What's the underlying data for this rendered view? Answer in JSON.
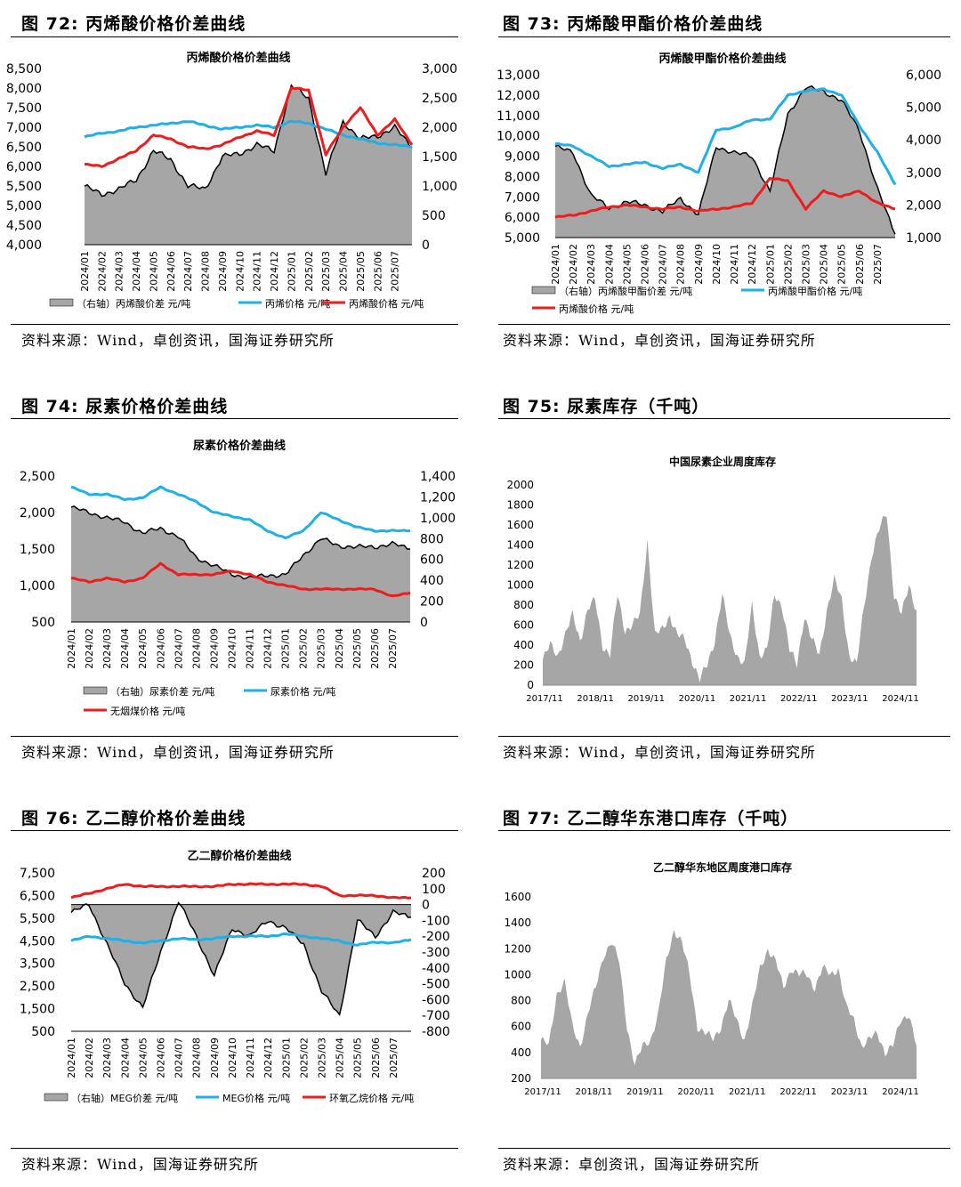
{
  "panels": [
    {
      "fig": "图 72:  丙烯酸价格价差曲线",
      "source": "资料来源：Wind，卓创资讯，国海证券研究所"
    },
    {
      "fig": "图 73:  丙烯酸甲酯价格价差曲线",
      "source": "资料来源：Wind，卓创资讯，国海证券研究所"
    },
    {
      "fig": "图 74:  尿素价格价差曲线",
      "source": "资料来源：Wind，卓创资讯，国海证券研究所"
    },
    {
      "fig": "图 75:  尿素库存（千吨）",
      "source": "资料来源：Wind，卓创资讯，国海证券研究所"
    },
    {
      "fig": "图 76:  乙二醇价格价差曲线",
      "source": "资料来源：Wind，国海证券研究所"
    },
    {
      "fig": "图 77:  乙二醇华东港口库存（千吨）",
      "source": "资料来源：卓创资讯，国海证券研究所"
    }
  ],
  "colors": {
    "spread": "#a6a6a6",
    "blue": "#1fb0e6",
    "red": "#ee1c1c"
  },
  "chart_data": [
    {
      "id": "c72",
      "type": "line",
      "title": "丙烯酸价格价差曲线",
      "x": [
        "2024/01",
        "2024/02",
        "2024/03",
        "2024/04",
        "2024/05",
        "2024/06",
        "2024/07",
        "2024/08",
        "2024/09",
        "2024/10",
        "2024/11",
        "2024/12",
        "2025/01",
        "2025/02",
        "2025/03",
        "2025/04",
        "2025/05",
        "2025/06",
        "2025/07",
        "2025/07e"
      ],
      "xticks": [
        "2024/01",
        "2024/02",
        "2024/03",
        "2024/04",
        "2024/05",
        "2024/06",
        "2024/07",
        "2024/08",
        "2024/09",
        "2024/10",
        "2024/11",
        "2024/12",
        "2025/01",
        "2025/02",
        "2025/03",
        "2025/04",
        "2025/05",
        "2025/06",
        "2025/07"
      ],
      "ylim": [
        4000,
        8500
      ],
      "yticks": [
        "8,500",
        "8,000",
        "7,500",
        "7,000",
        "6,500",
        "6,000",
        "5,500",
        "5,000",
        "4,500",
        "4,000"
      ],
      "y2lim": [
        0,
        3000
      ],
      "y2ticks": [
        "3,000",
        "2,500",
        "2,000",
        "1,500",
        "1,000",
        "500",
        "0"
      ],
      "series": [
        {
          "name": "（右轴）丙烯酸价差  元/吨",
          "axis": "y2",
          "kind": "area",
          "color": "spread",
          "values": [
            1000,
            850,
            950,
            1100,
            1600,
            1450,
            1000,
            950,
            1500,
            1550,
            1700,
            1600,
            2700,
            2500,
            1200,
            2100,
            1800,
            1850,
            2000,
            1650
          ]
        },
        {
          "name": "丙烯价格  元/吨",
          "axis": "y",
          "kind": "line",
          "color": "blue",
          "values": [
            6750,
            6850,
            6900,
            7000,
            7050,
            7100,
            7150,
            7050,
            6950,
            7000,
            7050,
            7000,
            7150,
            7100,
            6950,
            6800,
            6700,
            6600,
            6550,
            6500
          ]
        },
        {
          "name": "丙烯酸价格  元/吨",
          "axis": "y",
          "kind": "line",
          "color": "red",
          "values": [
            6050,
            6000,
            6200,
            6400,
            6800,
            6700,
            6500,
            6450,
            6550,
            6750,
            6900,
            6800,
            8000,
            7950,
            6300,
            7000,
            7500,
            6800,
            7200,
            6550
          ]
        }
      ],
      "legend": [
        {
          "text": "（右轴）丙烯酸价差  元/吨",
          "color": "spread",
          "kind": "box"
        },
        {
          "text": "丙烯价格  元/吨",
          "color": "blue",
          "kind": "line"
        },
        {
          "text": "丙烯酸价格  元/吨",
          "color": "red",
          "kind": "line"
        }
      ]
    },
    {
      "id": "c73",
      "type": "line",
      "title": "丙烯酸甲酯价格价差曲线",
      "x": [
        "2024/01",
        "2024/02",
        "2024/03",
        "2024/04",
        "2024/05",
        "2024/06",
        "2024/07",
        "2024/08",
        "2024/09",
        "2024/10",
        "2024/11",
        "2024/12",
        "2025/01",
        "2025/02",
        "2025/03",
        "2025/04",
        "2025/05",
        "2025/06",
        "2025/07",
        "2025/07e"
      ],
      "xticks": [
        "2024/01",
        "2024/02",
        "2024/03",
        "2024/04",
        "2024/05",
        "2024/06",
        "2024/07",
        "2024/08",
        "2024/09",
        "2024/10",
        "2024/11",
        "2024/12",
        "2025/01",
        "2025/02",
        "2025/03",
        "2025/04",
        "2025/05",
        "2025/06",
        "2025/07"
      ],
      "ylim": [
        5000,
        13000
      ],
      "yticks": [
        "13,000",
        "12,000",
        "11,000",
        "10,000",
        "9,000",
        "8,000",
        "7,000",
        "6,000",
        "5,000"
      ],
      "y2lim": [
        1000,
        6000
      ],
      "y2ticks": [
        "6,000",
        "5,000",
        "4,000",
        "3,000",
        "2,000",
        "1,000"
      ],
      "series": [
        {
          "name": "（右轴）丙烯酸甲酯价差  元/吨",
          "axis": "y2",
          "kind": "area",
          "color": "spread",
          "values": [
            3800,
            3600,
            2300,
            1900,
            2100,
            2000,
            1800,
            2200,
            1700,
            3800,
            3600,
            3500,
            2400,
            4800,
            5600,
            5500,
            5200,
            4300,
            2500,
            1100
          ]
        },
        {
          "name": "丙烯酸甲酯价格  元/吨",
          "axis": "y",
          "kind": "line",
          "color": "blue",
          "values": [
            9600,
            9500,
            9000,
            8500,
            8600,
            8700,
            8400,
            8600,
            8200,
            10300,
            10400,
            10800,
            10800,
            12000,
            12200,
            12300,
            12000,
            10500,
            9200,
            7600
          ]
        },
        {
          "name": "丙烯酸价格  元/吨",
          "axis": "y",
          "kind": "line",
          "color": "red",
          "values": [
            6000,
            6100,
            6300,
            6500,
            6600,
            6500,
            6400,
            6500,
            6300,
            6400,
            6500,
            6700,
            7900,
            7800,
            6400,
            7300,
            7000,
            7300,
            6700,
            6400
          ]
        }
      ],
      "legend": [
        {
          "text": "（右轴）丙烯酸甲酯价差  元/吨",
          "color": "spread",
          "kind": "box"
        },
        {
          "text": "丙烯酸甲酯价格  元/吨",
          "color": "blue",
          "kind": "line"
        },
        {
          "text": "丙烯酸价格  元/吨",
          "color": "red",
          "kind": "line"
        }
      ]
    },
    {
      "id": "c74",
      "type": "line",
      "title": "尿素价格价差曲线",
      "x": [
        "2024/01",
        "2024/02",
        "2024/03",
        "2024/04",
        "2024/05",
        "2024/06",
        "2024/07",
        "2024/08",
        "2024/09",
        "2024/10",
        "2024/11",
        "2024/12",
        "2025/01",
        "2025/02",
        "2025/03",
        "2025/04",
        "2025/05",
        "2025/06",
        "2025/07",
        "2025/07e"
      ],
      "xticks": [
        "2024/01",
        "2024/02",
        "2024/03",
        "2024/04",
        "2024/05",
        "2024/06",
        "2024/07",
        "2024/08",
        "2024/09",
        "2024/10",
        "2024/11",
        "2024/12",
        "2025/01",
        "2025/02",
        "2025/03",
        "2025/04",
        "2025/05",
        "2025/06",
        "2025/07"
      ],
      "ylim": [
        500,
        2500
      ],
      "yticks": [
        "2,500",
        "2,000",
        "1,500",
        "1,000",
        "500"
      ],
      "y2lim": [
        0,
        1400
      ],
      "y2ticks": [
        "1,400",
        "1,200",
        "1,000",
        "800",
        "600",
        "400",
        "200",
        "0"
      ],
      "series": [
        {
          "name": "（右轴）尿素价差  元/吨",
          "axis": "y2",
          "kind": "area",
          "color": "spread",
          "values": [
            1100,
            1050,
            1000,
            960,
            850,
            900,
            820,
            620,
            540,
            460,
            420,
            450,
            450,
            640,
            800,
            730,
            720,
            720,
            750,
            700
          ]
        },
        {
          "name": "尿素价格  元/吨",
          "axis": "y",
          "kind": "line",
          "color": "blue",
          "values": [
            2350,
            2250,
            2250,
            2180,
            2200,
            2350,
            2250,
            2150,
            2000,
            1950,
            1900,
            1750,
            1650,
            1750,
            2000,
            1900,
            1800,
            1750,
            1750,
            1750
          ]
        },
        {
          "name": "无烟煤价格  元/吨",
          "axis": "y",
          "kind": "line",
          "color": "red",
          "values": [
            1100,
            1050,
            1100,
            1050,
            1100,
            1300,
            1150,
            1150,
            1150,
            1200,
            1150,
            1050,
            1000,
            950,
            950,
            950,
            950,
            950,
            850,
            900
          ]
        }
      ],
      "legend": [
        {
          "text": "（右轴）尿素价差  元/吨",
          "color": "spread",
          "kind": "box"
        },
        {
          "text": "尿素价格  元/吨",
          "color": "blue",
          "kind": "line"
        },
        {
          "text": "无烟煤价格  元/吨",
          "color": "red",
          "kind": "line"
        }
      ]
    },
    {
      "id": "c75",
      "type": "area",
      "title": "中国尿素企业周度库存",
      "xticks": [
        "2017/11",
        "2018/11",
        "2019/11",
        "2020/11",
        "2021/11",
        "2022/11",
        "2023/11",
        "2024/11"
      ],
      "ylim": [
        0,
        2000
      ],
      "yticks": [
        "2000",
        "1800",
        "1600",
        "1400",
        "1200",
        "1000",
        "800",
        "600",
        "400",
        "200",
        "0"
      ],
      "series": [
        {
          "name": "",
          "color": "spread",
          "values": [
            250,
            400,
            300,
            500,
            700,
            450,
            750,
            850,
            400,
            300,
            900,
            550,
            600,
            700,
            1450,
            500,
            550,
            700,
            500,
            450,
            250,
            50,
            200,
            450,
            900,
            500,
            300,
            200,
            800,
            300,
            350,
            900,
            800,
            350,
            200,
            700,
            450,
            300,
            750,
            1050,
            850,
            300,
            200,
            800,
            1300,
            1550,
            1720,
            900,
            700,
            1000,
            750
          ]
        }
      ]
    },
    {
      "id": "c76",
      "type": "line",
      "title": "乙二醇价格价差曲线",
      "x": [
        "2024/01",
        "2024/02",
        "2024/03",
        "2024/04",
        "2024/05",
        "2024/06",
        "2024/07",
        "2024/08",
        "2024/09",
        "2024/10",
        "2024/11",
        "2024/12",
        "2025/01",
        "2025/02",
        "2025/03",
        "2025/04",
        "2025/05",
        "2025/06",
        "2025/07",
        "2025/07e"
      ],
      "xticks": [
        "2024/01",
        "2024/02",
        "2024/03",
        "2024/04",
        "2024/05",
        "2024/06",
        "2024/07",
        "2024/08",
        "2024/09",
        "2024/10",
        "2024/11",
        "2024/12",
        "2025/01",
        "2025/02",
        "2025/03",
        "2025/04",
        "2025/05",
        "2025/06",
        "2025/07"
      ],
      "ylim": [
        500,
        7500
      ],
      "yticks": [
        "7,500",
        "6,500",
        "5,500",
        "4,500",
        "3,500",
        "2,500",
        "1,500",
        "500"
      ],
      "y2lim": [
        -800,
        200
      ],
      "y2ticks": [
        "200",
        "100",
        "0",
        "-100",
        "-200",
        "-300",
        "-400",
        "-500",
        "-600",
        "-700",
        "-800"
      ],
      "series": [
        {
          "name": "（右轴）MEG价差  元/吨",
          "axis": "y2",
          "kind": "area",
          "color": "spread",
          "values": [
            -50,
            0,
            -250,
            -500,
            -650,
            -300,
            20,
            -200,
            -450,
            -150,
            -200,
            -100,
            -150,
            -250,
            -550,
            -700,
            -100,
            -200,
            -50,
            -80
          ]
        },
        {
          "name": "MEG价格  元/吨",
          "axis": "y",
          "kind": "line",
          "color": "blue",
          "values": [
            4500,
            4700,
            4600,
            4500,
            4400,
            4500,
            4600,
            4550,
            4600,
            4700,
            4700,
            4700,
            4800,
            4700,
            4600,
            4500,
            4300,
            4450,
            4400,
            4550
          ]
        },
        {
          "name": "环氧乙烷价格  元/吨",
          "axis": "y",
          "kind": "line",
          "color": "red",
          "values": [
            6400,
            6600,
            6800,
            7000,
            6900,
            6900,
            6900,
            6900,
            6900,
            7000,
            7000,
            7000,
            7000,
            7000,
            6900,
            6500,
            6500,
            6500,
            6400,
            6400
          ]
        }
      ],
      "legend": [
        {
          "text": "（右轴）MEG价差  元/吨",
          "color": "spread",
          "kind": "box"
        },
        {
          "text": "MEG价格  元/吨",
          "color": "blue",
          "kind": "line"
        },
        {
          "text": "环氧乙烷价格  元/吨",
          "color": "red",
          "kind": "line"
        }
      ]
    },
    {
      "id": "c77",
      "type": "area",
      "title": "乙二醇华东地区周度港口库存",
      "xticks": [
        "2017/11",
        "2018/11",
        "2019/11",
        "2020/11",
        "2021/11",
        "2022/11",
        "2023/11",
        "2024/11"
      ],
      "ylim": [
        200,
        1600
      ],
      "yticks": [
        "1600",
        "1400",
        "1200",
        "1000",
        "800",
        "600",
        "400",
        "200"
      ],
      "series": [
        {
          "name": "",
          "color": "spread",
          "values": [
            500,
            450,
            850,
            950,
            600,
            450,
            700,
            900,
            1150,
            1250,
            1100,
            600,
            300,
            450,
            500,
            700,
            1100,
            1350,
            1250,
            1000,
            600,
            550,
            500,
            600,
            800,
            650,
            500,
            750,
            1050,
            1200,
            1100,
            900,
            1050,
            1000,
            1000,
            900,
            1050,
            1000,
            1050,
            750,
            650,
            450,
            500,
            550,
            400,
            450,
            650,
            700,
            450
          ]
        }
      ]
    }
  ]
}
